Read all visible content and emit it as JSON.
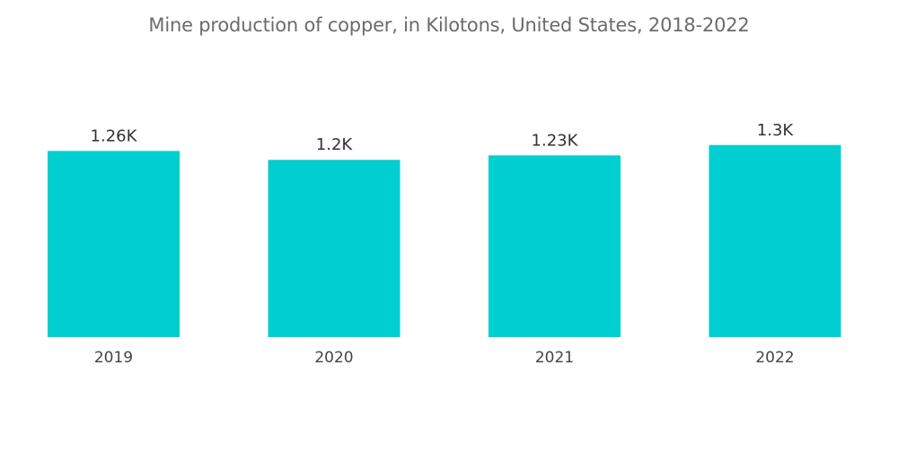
{
  "chart_data": {
    "type": "bar",
    "title": "Mine production of copper, in Kilotons, United States, 2018-2022",
    "categories": [
      "2019",
      "2020",
      "2021",
      "2022"
    ],
    "values": [
      1260,
      1200,
      1230,
      1300
    ],
    "data_labels": [
      "1.26K",
      "1.2K",
      "1.23K",
      "1.3K"
    ],
    "xlabel": "",
    "ylabel": "",
    "grid": false,
    "legend": "none",
    "bar_color": "#00CED1"
  }
}
